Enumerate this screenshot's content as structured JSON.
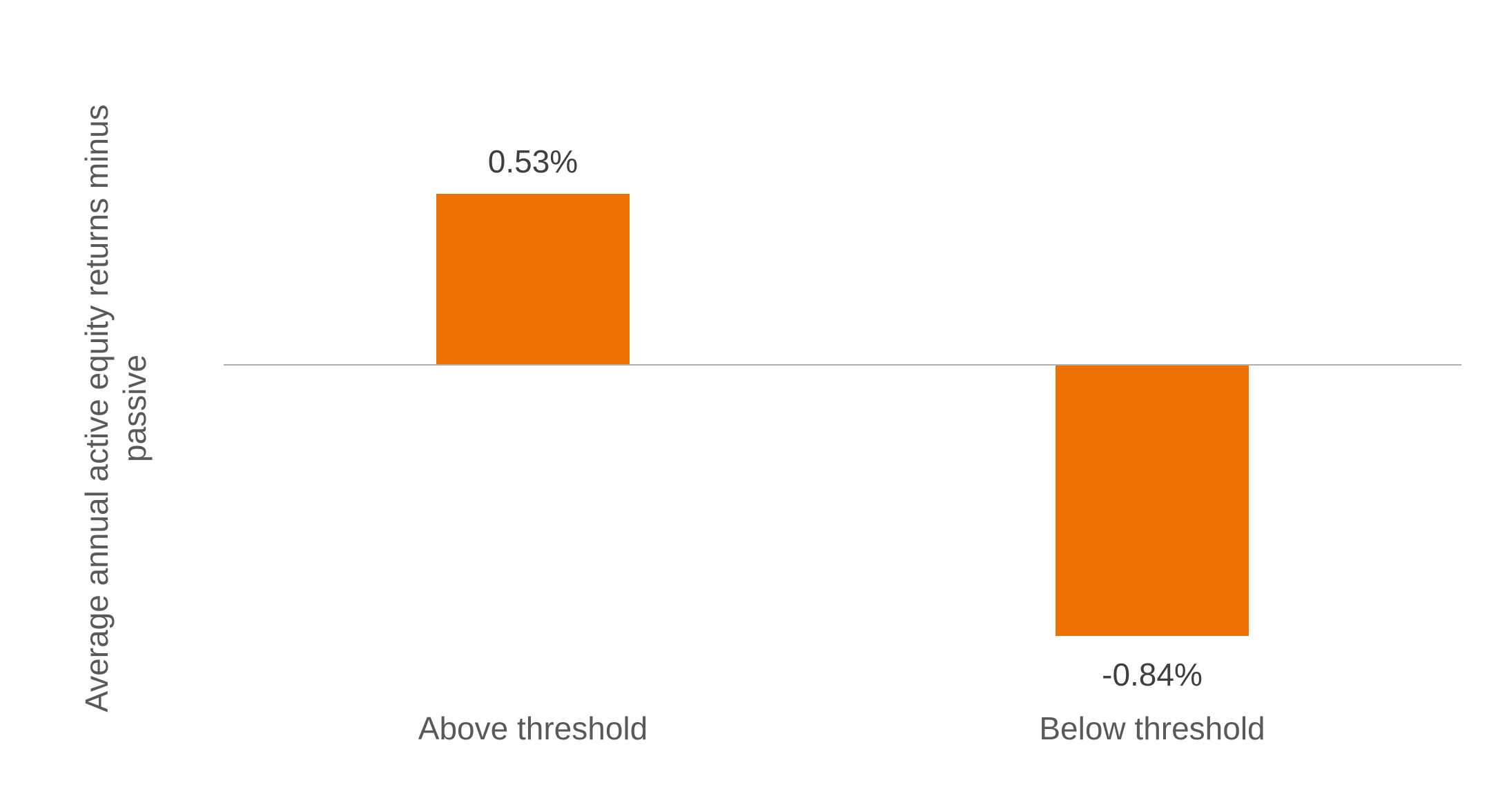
{
  "chart_data": {
    "type": "bar",
    "categories": [
      "Above threshold",
      "Below threshold"
    ],
    "values": [
      0.53,
      -0.84
    ],
    "value_labels": [
      "0.53%",
      "-0.84%"
    ],
    "title": "",
    "xlabel": "",
    "ylabel": "Average annual active equity returns minus passive",
    "ylim": [
      -1.05,
      0.85
    ],
    "grid": false,
    "legend": false,
    "bar_color": "#ED7102",
    "axis_line_color": "#AFAFAF",
    "value_label_color": "#3F3F3F",
    "category_label_color": "#595959",
    "axis_title_color": "#595959",
    "background_color": "#FFFFFF"
  }
}
